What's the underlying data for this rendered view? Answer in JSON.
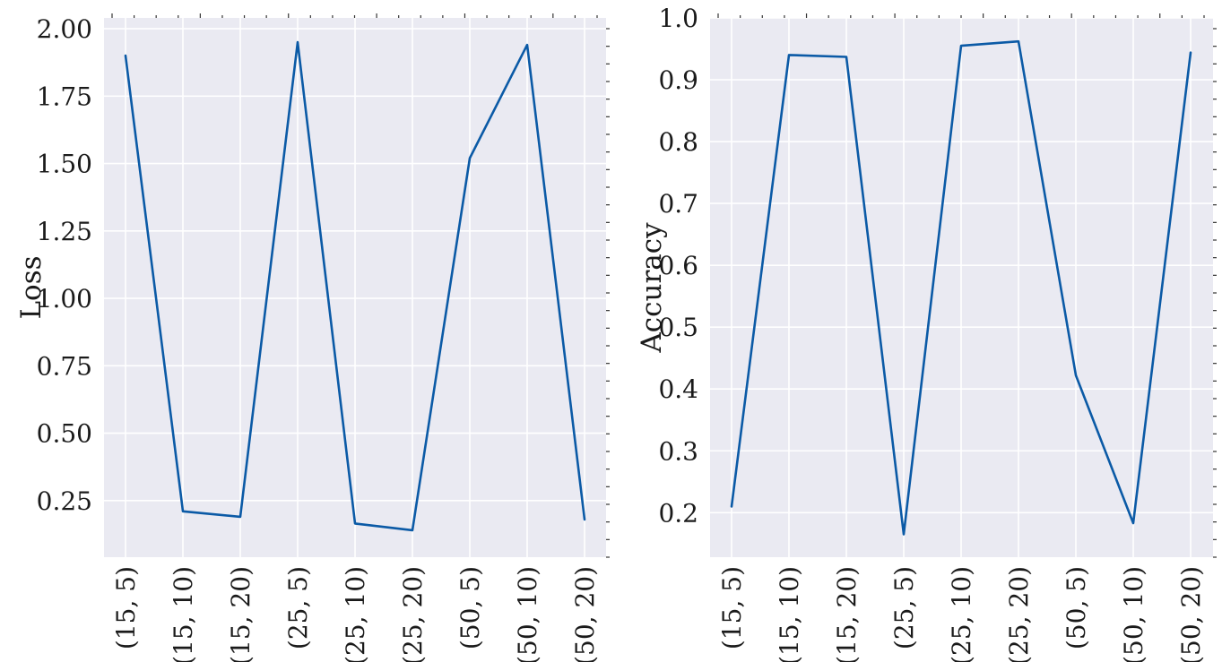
{
  "chart_data": [
    {
      "type": "line",
      "ylabel": "Loss",
      "categories": [
        "(15, 5)",
        "(15, 10)",
        "(15, 20)",
        "(25, 5)",
        "(25, 10)",
        "(25, 20)",
        "(50, 5)",
        "(50, 10)",
        "(50, 20)"
      ],
      "series": [
        {
          "values": [
            1.9,
            0.21,
            0.19,
            1.95,
            0.165,
            0.14,
            1.52,
            1.94,
            0.18
          ]
        }
      ],
      "ylim": [
        0.04,
        2.04
      ],
      "yticks": [
        0.25,
        0.5,
        0.75,
        1.0,
        1.25,
        1.5,
        1.75,
        2.0
      ],
      "ytick_labels": [
        "0.25",
        "0.50",
        "0.75",
        "1.00",
        "1.25",
        "1.50",
        "1.75",
        "2.00"
      ],
      "grid": true,
      "color": "#0b5aa6"
    },
    {
      "type": "line",
      "ylabel": "Accuracy",
      "categories": [
        "(15, 5)",
        "(15, 10)",
        "(15, 20)",
        "(25, 5)",
        "(25, 10)",
        "(25, 20)",
        "(50, 5)",
        "(50, 10)",
        "(50, 20)"
      ],
      "series": [
        {
          "values": [
            0.21,
            0.94,
            0.937,
            0.165,
            0.955,
            0.962,
            0.422,
            0.183,
            0.944
          ]
        }
      ],
      "ylim": [
        0.128,
        1.0
      ],
      "yticks": [
        0.2,
        0.3,
        0.4,
        0.5,
        0.6,
        0.7,
        0.8,
        0.9,
        1.0
      ],
      "ytick_labels": [
        "0.2",
        "0.3",
        "0.4",
        "0.5",
        "0.6",
        "0.7",
        "0.8",
        "0.9",
        "1.0"
      ],
      "grid": true,
      "color": "#0b5aa6"
    }
  ]
}
